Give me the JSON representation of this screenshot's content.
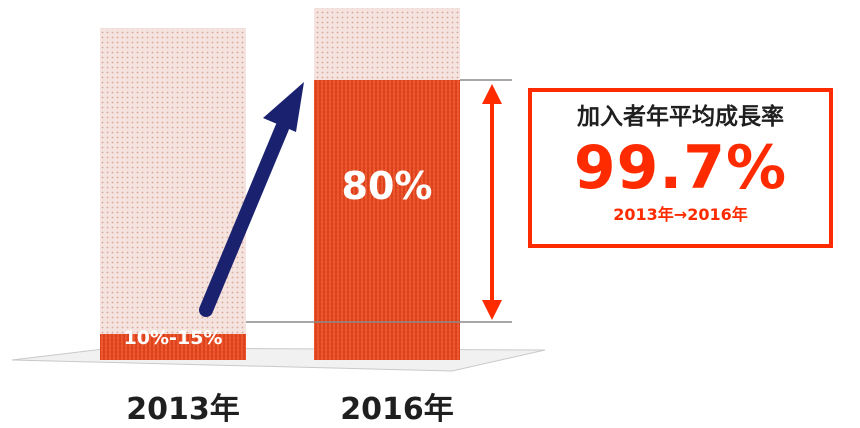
{
  "chart_data": {
    "type": "bar",
    "categories": [
      "2013年",
      "2016年"
    ],
    "bar_labels": [
      "10%-15%",
      "80%"
    ],
    "values": [
      15,
      80
    ],
    "ylim": [
      0,
      100
    ],
    "title": "",
    "xlabel": "",
    "ylabel": "",
    "annotation": {
      "title": "加入者年平均成長率",
      "value": "99.7%",
      "period": "2013年→2016年"
    }
  },
  "colors": {
    "accent": "#ff2b00",
    "bar_fill": "#e8471f",
    "bar_empty": "#f0d8d2",
    "arrow": "#1a2270"
  }
}
